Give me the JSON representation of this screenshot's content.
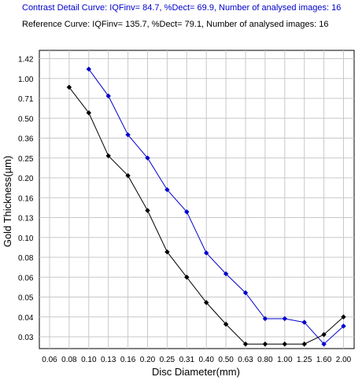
{
  "header": {
    "line1": "Contrast Detail Curve: IQFinv= 84.7, %Dect= 69.9, Number of analysed images: 16",
    "line2": "Reference Curve: IQFinv= 135.7, %Dect= 79.1, Number of analysed images: 16"
  },
  "chart_data": {
    "type": "line",
    "title": "",
    "xlabel": "Disc Diameter(mm)",
    "ylabel": "Gold Thickness(µm)",
    "categories": [
      "0.06",
      "0.08",
      "0.10",
      "0.13",
      "0.16",
      "0.20",
      "0.25",
      "0.31",
      "0.40",
      "0.50",
      "0.63",
      "0.80",
      "1.00",
      "1.25",
      "1.60",
      "2.00"
    ],
    "y_ticks": [
      "0.03",
      "0.04",
      "0.05",
      "0.06",
      "0.08",
      "0.10",
      "0.13",
      "0.16",
      "0.20",
      "0.25",
      "0.36",
      "0.50",
      "0.71",
      "1.00",
      "1.42"
    ],
    "grid": true,
    "series": [
      {
        "name": "Contrast Detail Curve",
        "color": "#0000cc",
        "x": [
          "0.10",
          "0.13",
          "0.16",
          "0.20",
          "0.25",
          "0.31",
          "0.40",
          "0.50",
          "0.63",
          "0.80",
          "1.00",
          "1.25",
          "1.60",
          "2.00"
        ],
        "values": [
          1.18,
          0.74,
          0.38,
          0.25,
          0.175,
          0.138,
          0.084,
          0.063,
          0.052,
          0.039,
          0.039,
          0.037,
          0.027,
          0.035
        ]
      },
      {
        "name": "Reference Curve",
        "color": "#000000",
        "x": [
          "0.08",
          "0.10",
          "0.13",
          "0.16",
          "0.20",
          "0.25",
          "0.31",
          "0.40",
          "0.50",
          "0.63",
          "0.80",
          "1.00",
          "1.25",
          "1.60",
          "2.00"
        ],
        "values": [
          0.86,
          0.55,
          0.26,
          0.205,
          0.14,
          0.085,
          0.06,
          0.047,
          0.036,
          0.027,
          0.027,
          0.027,
          0.027,
          0.031,
          0.04
        ]
      }
    ]
  }
}
